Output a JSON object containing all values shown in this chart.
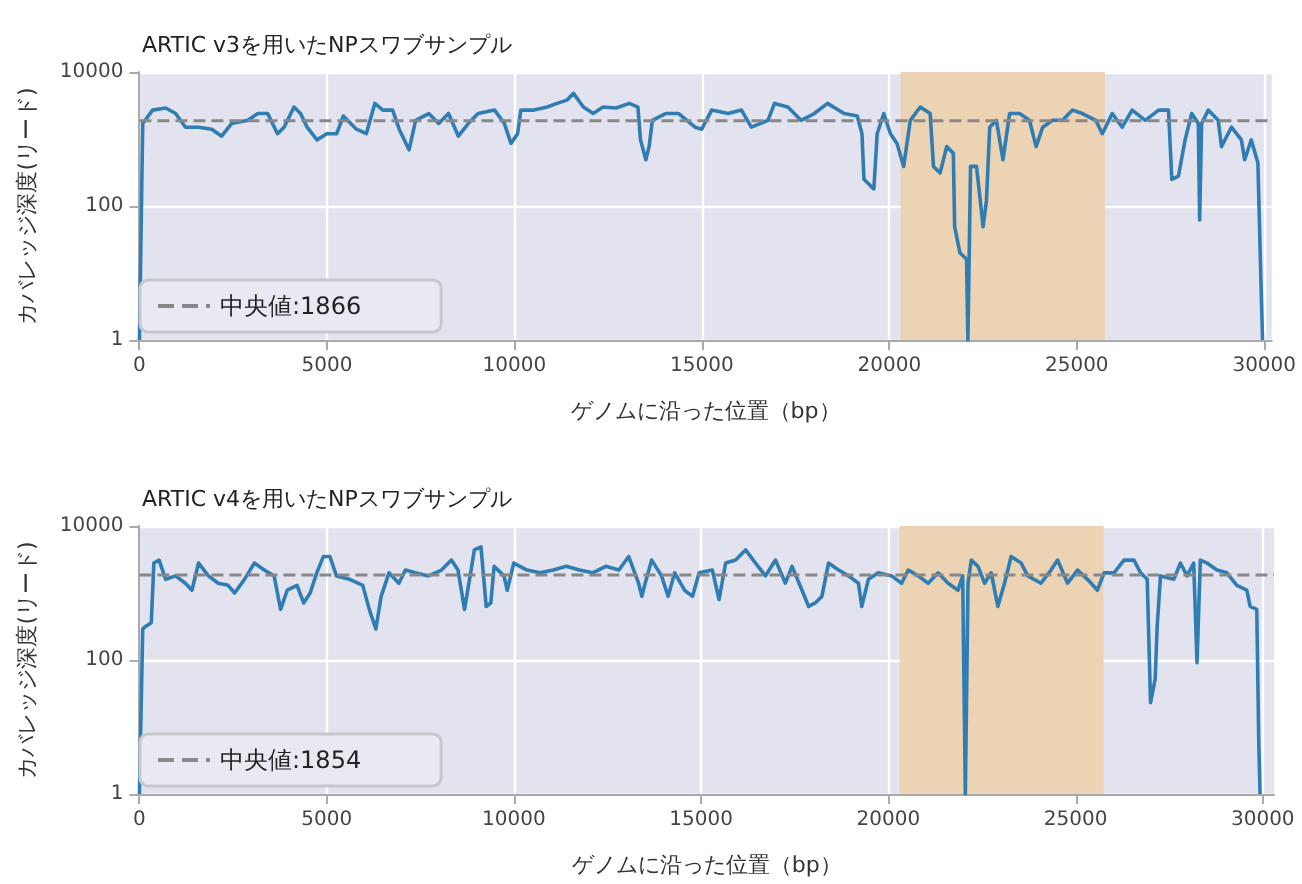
{
  "chart_data": [
    {
      "type": "line",
      "title": "ARTIC v3を用いたNPスワブサンプル",
      "xlabel": "ゲノムに沿った位置（bp）",
      "ylabel": "カバレッジ深度(リード)",
      "log": "y",
      "grid": true,
      "legend": "bottom left",
      "xlim": [
        0,
        30200
      ],
      "xticks": [
        0,
        5000,
        10000,
        15000,
        20000,
        25000,
        30000
      ],
      "ylim": [
        1,
        10000
      ],
      "yticks": [
        1,
        100,
        10000
      ],
      "bands": [
        {
          "axis": "x",
          "from": 20300,
          "to": 25750,
          "color": "#ecd3b4"
        }
      ],
      "ref_lines": [
        {
          "axis": "y",
          "value": 1866,
          "label": "中央値:1866",
          "color": "#888888",
          "line_style": "dashed"
        }
      ],
      "series": [
        {
          "color": "#2f7db3",
          "x": [
            0,
            88,
            351,
            702,
            965,
            1228,
            1579,
            1929,
            2193,
            2456,
            2894,
            3157,
            3420,
            3683,
            3859,
            4122,
            4297,
            4473,
            4736,
            4999,
            5262,
            5437,
            5788,
            6051,
            6279,
            6490,
            6753,
            6928,
            7191,
            7367,
            7718,
            7981,
            8244,
            8507,
            8770,
            9033,
            9472,
            9735,
            9910,
            10086,
            10173,
            10524,
            10875,
            11138,
            11401,
            11576,
            11840,
            12103,
            12366,
            12717,
            13067,
            13295,
            13365,
            13506,
            13594,
            13681,
            14032,
            14383,
            14820,
            14997,
            15262,
            15703,
            16056,
            16321,
            16763,
            16939,
            17293,
            17646,
            17999,
            18352,
            18794,
            19147,
            19271,
            19324,
            19500,
            19588,
            19677,
            19853,
            20030,
            20206,
            20383,
            20560,
            20825,
            21090,
            21178,
            21354,
            21531,
            21708,
            21743,
            21884,
            22061,
            22096,
            22167,
            22326,
            22502,
            22591,
            22679,
            22856,
            23032,
            23209,
            23474,
            23739,
            23915,
            24092,
            24357,
            24622,
            24886,
            25151,
            25505,
            25681,
            25946,
            26211,
            26476,
            26829,
            27182,
            27447,
            27535,
            27712,
            27889,
            28065,
            28242,
            28277,
            28330,
            28507,
            28772,
            28860,
            29125,
            29390,
            29478,
            29655,
            29831,
            29920,
            29955
          ],
          "values": [
            1,
            1700,
            2700,
            2900,
            2400,
            1500,
            1500,
            1400,
            1100,
            1700,
            1900,
            2400,
            2400,
            1200,
            1500,
            3000,
            2400,
            1500,
            970,
            1200,
            1200,
            2200,
            1400,
            1200,
            3400,
            2700,
            2700,
            1400,
            690,
            1900,
            2400,
            1700,
            2400,
            1100,
            1700,
            2400,
            2700,
            1700,
            860,
            1200,
            2700,
            2700,
            3000,
            3400,
            3800,
            4800,
            3000,
            2400,
            3000,
            2900,
            3400,
            3000,
            970,
            490,
            770,
            1900,
            2400,
            2400,
            1500,
            1400,
            2700,
            2400,
            2700,
            1500,
            1900,
            3400,
            3000,
            1900,
            2400,
            3400,
            2400,
            2200,
            1200,
            250,
            200,
            180,
            1200,
            2400,
            1200,
            860,
            390,
            1900,
            3000,
            2400,
            390,
            310,
            770,
            610,
            49,
            20,
            16,
            1,
            390,
            390,
            49,
            120,
            1500,
            1900,
            490,
            2400,
            2400,
            1900,
            770,
            1500,
            1900,
            1900,
            2700,
            2400,
            1900,
            1200,
            2400,
            1500,
            2700,
            1900,
            2700,
            2700,
            250,
            280,
            970,
            2400,
            1700,
            62,
            1700,
            2700,
            1900,
            770,
            1500,
            970,
            490,
            970,
            440,
            5,
            1
          ]
        }
      ]
    },
    {
      "type": "line",
      "title": "ARTIC v4を用いたNPスワブサンプル",
      "xlabel": "ゲノムに沿った位置（bp）",
      "ylabel": "カバレッジ深度(リード)",
      "log": "y",
      "grid": true,
      "legend": "bottom left",
      "xlim": [
        0,
        30300
      ],
      "xticks": [
        0,
        5000,
        10000,
        15000,
        20000,
        25000,
        30000
      ],
      "ylim": [
        1,
        10000
      ],
      "yticks": [
        1,
        100,
        10000
      ],
      "bands": [
        {
          "axis": "x",
          "from": 20300,
          "to": 25750,
          "color": "#ecd3b4"
        }
      ],
      "ref_lines": [
        {
          "axis": "y",
          "value": 1854,
          "label": "中央値:1854",
          "color": "#888888",
          "line_style": "dashed"
        }
      ],
      "series": [
        {
          "color": "#2f7db3",
          "x": [
            0,
            88,
            175,
            316,
            386,
            526,
            702,
            965,
            1228,
            1403,
            1579,
            1842,
            2105,
            2368,
            2543,
            2806,
            3070,
            3333,
            3596,
            3771,
            3947,
            4210,
            4385,
            4560,
            4736,
            4911,
            5087,
            5262,
            5613,
            5964,
            6139,
            6314,
            6455,
            6665,
            6928,
            7104,
            7367,
            7718,
            8068,
            8332,
            8507,
            8682,
            8858,
            8945,
            9121,
            9261,
            9384,
            9472,
            9735,
            9823,
            9998,
            10349,
            10699,
            11050,
            11401,
            11752,
            12103,
            12454,
            12804,
            13067,
            13331,
            13418,
            13506,
            13681,
            13944,
            14120,
            14295,
            14558,
            14770,
            14947,
            15301,
            15479,
            15656,
            15922,
            16188,
            16454,
            16720,
            16986,
            17252,
            17429,
            17695,
            17872,
            18050,
            18227,
            18404,
            18670,
            18936,
            19202,
            19291,
            19468,
            19734,
            20088,
            20354,
            20532,
            20798,
            21064,
            21330,
            21596,
            21862,
            21986,
            22057,
            22128,
            22216,
            22394,
            22571,
            22748,
            22925,
            23103,
            23280,
            23546,
            23723,
            24078,
            24344,
            24521,
            24787,
            25053,
            25319,
            25585,
            25762,
            26028,
            26294,
            26560,
            26737,
            26914,
            27003,
            27127,
            27180,
            27269,
            27624,
            27801,
            27978,
            28155,
            28244,
            28333,
            28510,
            28776,
            29042,
            29308,
            29574,
            29663,
            29840,
            29893,
            29928
          ],
          "values": [
            1,
            290,
            320,
            360,
            2800,
            3100,
            1600,
            1800,
            1400,
            1100,
            2800,
            1800,
            1400,
            1300,
            1000,
            1600,
            2800,
            2200,
            1800,
            570,
            1100,
            1300,
            710,
            1000,
            2000,
            3500,
            3500,
            1800,
            1600,
            1300,
            570,
            290,
            890,
            2000,
            1400,
            2200,
            2000,
            1800,
            2200,
            3100,
            2200,
            570,
            2200,
            4400,
            4900,
            630,
            710,
            2500,
            1800,
            1100,
            2800,
            2200,
            2000,
            2200,
            2500,
            2200,
            2000,
            2500,
            2200,
            3500,
            1400,
            890,
            1400,
            3100,
            1800,
            890,
            2000,
            1100,
            890,
            2000,
            2200,
            800,
            2800,
            3100,
            4400,
            2800,
            1800,
            3100,
            1400,
            2500,
            1100,
            630,
            710,
            890,
            2800,
            2200,
            1800,
            1400,
            630,
            1600,
            2000,
            1800,
            1400,
            2200,
            1800,
            1400,
            2000,
            1400,
            1100,
            1800,
            1,
            1400,
            3100,
            2500,
            1400,
            2000,
            630,
            1400,
            3500,
            2800,
            1800,
            1400,
            2200,
            3100,
            1400,
            2200,
            1600,
            1100,
            2000,
            2000,
            3100,
            3100,
            2000,
            1600,
            23,
            52,
            320,
            1800,
            1600,
            2800,
            1800,
            2800,
            91,
            3100,
            2800,
            2200,
            2000,
            1300,
            1100,
            630,
            570,
            5.9,
            1
          ]
        }
      ]
    }
  ]
}
